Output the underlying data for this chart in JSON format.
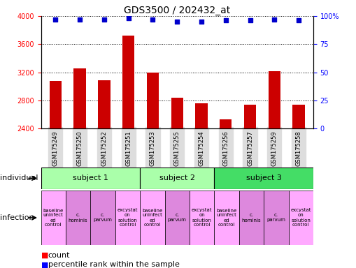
{
  "title": "GDS3500 / 202432_at",
  "samples": [
    "GSM175249",
    "GSM175250",
    "GSM175252",
    "GSM175251",
    "GSM175253",
    "GSM175255",
    "GSM175254",
    "GSM175256",
    "GSM175257",
    "GSM175259",
    "GSM175258"
  ],
  "counts": [
    3080,
    3260,
    3090,
    3720,
    3200,
    2840,
    2760,
    2530,
    2740,
    3220,
    2740
  ],
  "percentile_ranks": [
    97,
    97,
    97,
    98,
    97,
    95,
    95,
    96,
    96,
    97,
    96
  ],
  "ylim_left": [
    2400,
    4000
  ],
  "ylim_right": [
    0,
    100
  ],
  "bar_color": "#cc0000",
  "dot_color": "#0000cc",
  "yticks_left": [
    2400,
    2800,
    3200,
    3600,
    4000
  ],
  "yticks_right": [
    0,
    25,
    50,
    75,
    100
  ],
  "ytick_labels_right": [
    "0",
    "25",
    "50",
    "75",
    "100%"
  ],
  "subject_spans": [
    {
      "label": "subject 1",
      "start": 0,
      "end": 4,
      "color": "#aaffaa"
    },
    {
      "label": "subject 2",
      "start": 4,
      "end": 7,
      "color": "#aaffaa"
    },
    {
      "label": "subject 3",
      "start": 7,
      "end": 11,
      "color": "#44dd66"
    }
  ],
  "infection_labels": [
    "baseline\nuninfect\ned\ncontrol",
    "c.\nhominis",
    "c.\nparvum",
    "excystat\non\nsolution\ncontrol",
    "baseline\nuninfect\ned\ncontrol",
    "c.\nparvum",
    "excystat\non\nsolution\ncontrol",
    "baseline\nuninfect\ned\ncontrol",
    "c.\nhominis",
    "c.\nparvum",
    "excystat\non\nsolution\ncontrol"
  ],
  "infection_colors": [
    "#ffaaff",
    "#dd88dd",
    "#dd88dd",
    "#ffaaff",
    "#ffaaff",
    "#dd88dd",
    "#ffaaff",
    "#ffaaff",
    "#dd88dd",
    "#dd88dd",
    "#ffaaff"
  ],
  "background_color": "#ffffff",
  "tick_fontsize": 7,
  "title_fontsize": 10,
  "sample_fontsize": 6,
  "inf_fontsize": 5,
  "subj_fontsize": 8,
  "label_fontsize": 8,
  "legend_fontsize": 8,
  "bar_width": 0.5,
  "dot_size": 25,
  "xtick_bg": "#dddddd"
}
